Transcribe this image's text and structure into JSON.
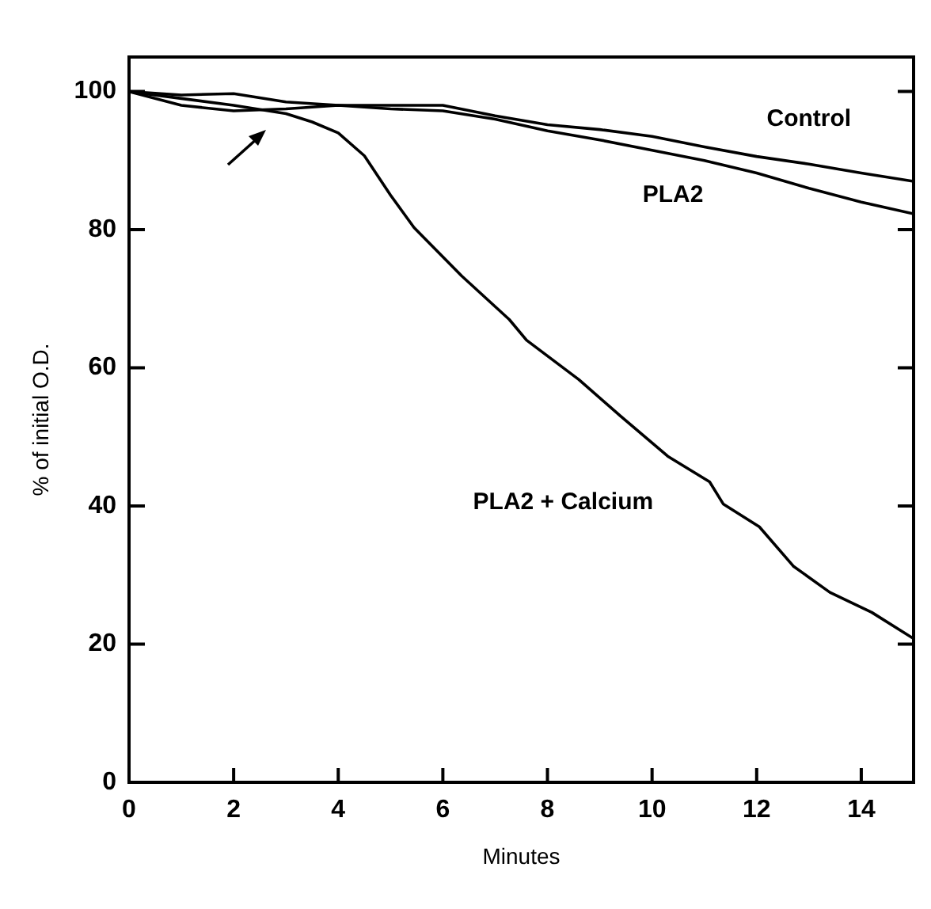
{
  "chart_data": {
    "type": "line",
    "xlabel": "Minutes",
    "ylabel": "% of initial O.D.",
    "xlim": [
      0,
      15
    ],
    "ylim": [
      0,
      105
    ],
    "xticks": [
      0,
      2,
      4,
      6,
      8,
      10,
      12,
      14
    ],
    "yticks": [
      0,
      20,
      40,
      60,
      80,
      100
    ],
    "grid": false,
    "legend": false,
    "marker": "none",
    "line_style": "solid",
    "series": [
      {
        "name": "Control",
        "color": "#000000",
        "x": [
          0,
          1,
          2,
          3,
          4,
          5,
          6,
          7,
          8,
          9,
          10,
          11,
          12,
          13,
          14,
          15
        ],
        "values": [
          100,
          99.5,
          99.7,
          98.5,
          98,
          98,
          98,
          96.5,
          95.2,
          94.5,
          93.5,
          92,
          90.6,
          89.5,
          88.2,
          87
        ]
      },
      {
        "name": "PLA2",
        "color": "#000000",
        "x": [
          0,
          1,
          2,
          3,
          4,
          5,
          6,
          7,
          8,
          9,
          10,
          11,
          12,
          13,
          14,
          15
        ],
        "values": [
          100,
          98,
          97.2,
          97.5,
          98,
          97.5,
          97.2,
          96,
          94.3,
          93,
          91.5,
          90,
          88.2,
          86,
          84,
          82.3
        ]
      },
      {
        "name": "PLA2 + Calcium",
        "color": "#000000",
        "x": [
          0,
          1,
          2,
          3,
          3.5,
          4,
          4.5,
          5,
          5.45,
          6.36,
          7.27,
          7.6,
          8.6,
          9.4,
          10.3,
          11.1,
          11.36,
          12.05,
          12.7,
          13.4,
          14.2,
          15
        ],
        "values": [
          100,
          99,
          98,
          96.8,
          95.6,
          94,
          90.7,
          85,
          80.3,
          73.3,
          67,
          64,
          58.3,
          53,
          47.2,
          43.5,
          40.3,
          37,
          31.3,
          27.5,
          24.6,
          20.8
        ]
      }
    ]
  }
}
